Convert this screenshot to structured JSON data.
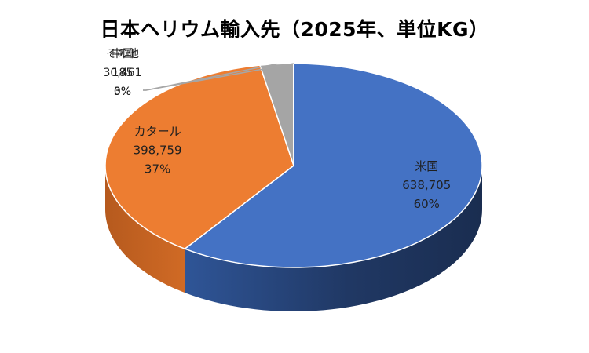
{
  "chart_data": {
    "type": "pie",
    "title": "日本ヘリウム輸入先（2025年、単位KG）",
    "categories": [
      "米国",
      "カタール",
      "中国",
      "その他"
    ],
    "values": [
      638705,
      398759,
      30461,
      185
    ],
    "percent_labels": [
      "60%",
      "37%",
      "3%",
      "0%"
    ],
    "value_labels": [
      "638,705",
      "398,759",
      "30,461",
      "185"
    ],
    "colors": [
      "#4472C4",
      "#ED7D31",
      "#A5A5A5",
      "#FFC000"
    ],
    "style": "3d",
    "legend": "none"
  }
}
